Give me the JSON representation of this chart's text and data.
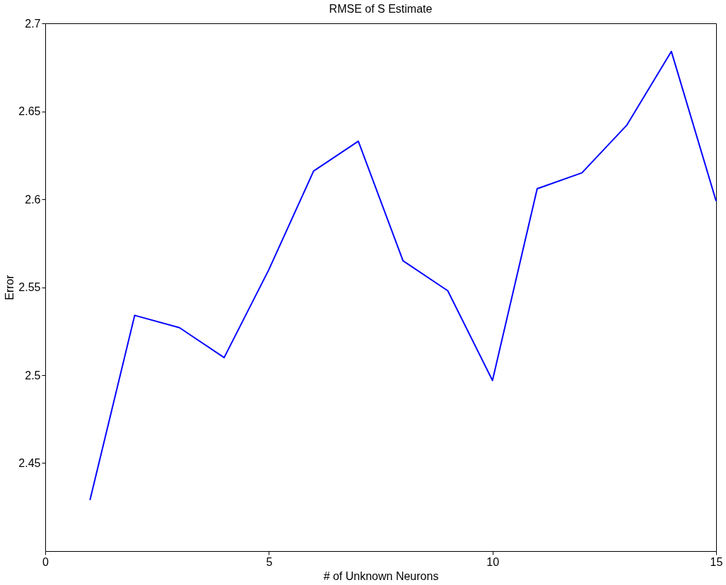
{
  "chart_data": {
    "type": "line",
    "title": "RMSE of S Estimate",
    "xlabel": "# of Unknown Neurons",
    "ylabel": "Error",
    "x": [
      1,
      2,
      3,
      4,
      5,
      6,
      7,
      8,
      9,
      10,
      11,
      12,
      13,
      14,
      15
    ],
    "series": [
      {
        "color": "#0000ff",
        "values": [
          2.429,
          2.534,
          2.527,
          2.51,
          2.56,
          2.616,
          2.633,
          2.565,
          2.548,
          2.497,
          2.606,
          2.615,
          2.642,
          2.684,
          2.599
        ]
      }
    ],
    "xlim": [
      0,
      15
    ],
    "xticks": [
      0,
      5,
      10,
      15
    ],
    "ylim": [
      2.4,
      2.7
    ],
    "yticks": [
      2.45,
      2.5,
      2.55,
      2.6,
      2.65,
      2.7
    ],
    "grid": false,
    "marker": "none",
    "line_style": "solid"
  }
}
